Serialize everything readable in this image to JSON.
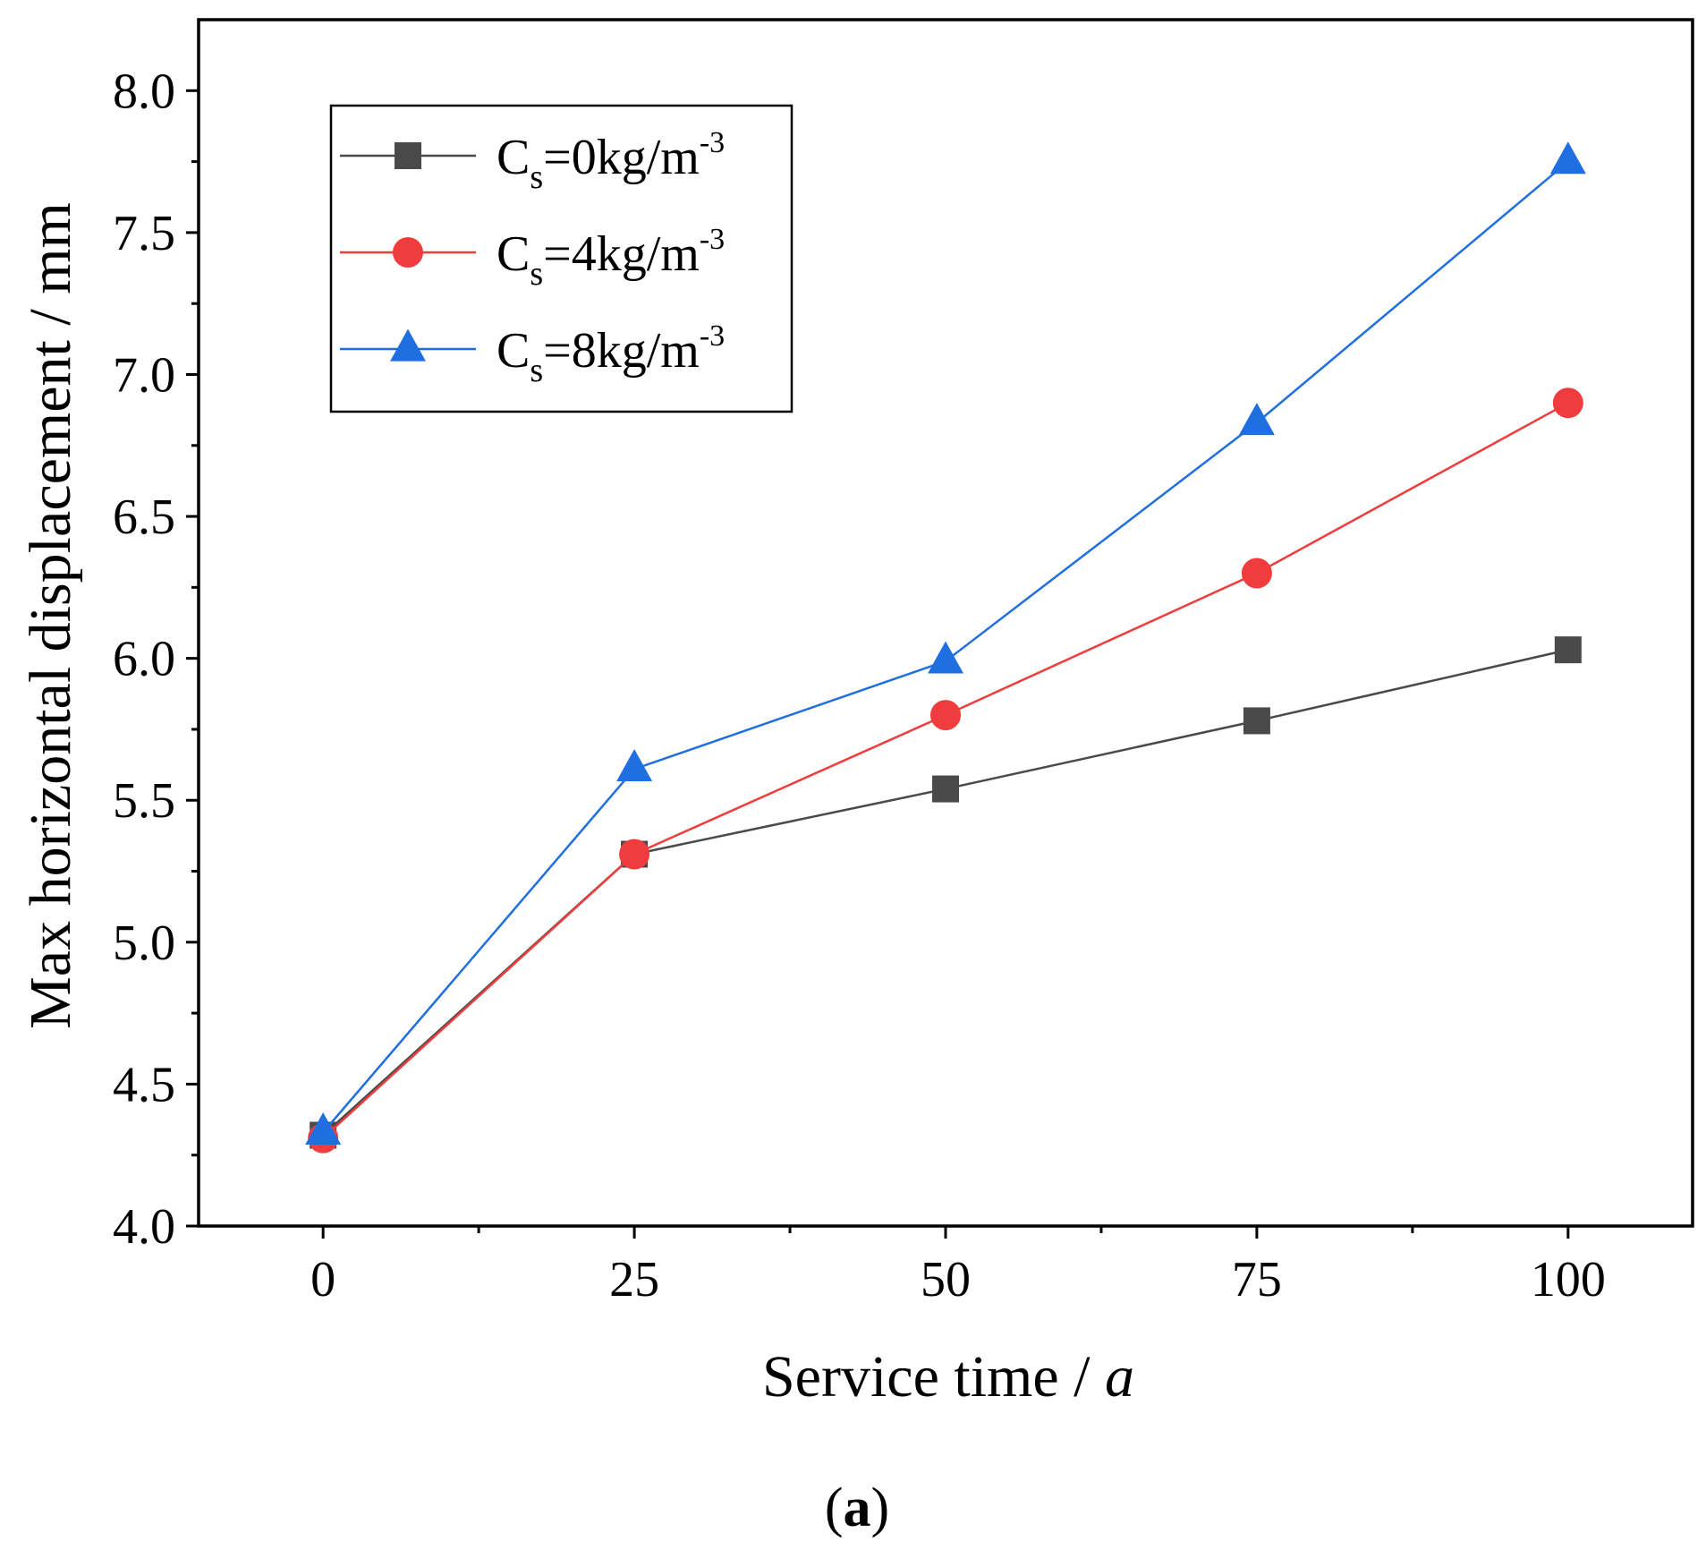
{
  "chart_data": {
    "type": "line",
    "x": [
      0,
      25,
      50,
      75,
      100
    ],
    "xlabel": "Service time / ",
    "xlabel_italic": "a",
    "ylabel": "Max horizontal displacement / mm",
    "xlim": [
      -10,
      110
    ],
    "ylim": [
      4.0,
      8.25
    ],
    "xticks": [
      "0",
      "25",
      "50",
      "75",
      "100"
    ],
    "yticks": [
      "4.0",
      "4.5",
      "5.0",
      "5.5",
      "6.0",
      "6.5",
      "7.0",
      "7.5",
      "8.0"
    ],
    "xtick_values": [
      0,
      25,
      50,
      75,
      100
    ],
    "ytick_values": [
      4.0,
      4.5,
      5.0,
      5.5,
      6.0,
      6.5,
      7.0,
      7.5,
      8.0
    ],
    "legend_position": "top-left",
    "series": [
      {
        "name": "Cs=0kg/m-3",
        "label_main": "C",
        "label_sub": "s",
        "label_rest": "=0kg/m",
        "label_sup": "-3",
        "marker": "square",
        "color": "#4a4a4a",
        "values": [
          4.32,
          5.31,
          5.54,
          5.78,
          6.03
        ]
      },
      {
        "name": "Cs=4kg/m-3",
        "label_main": "C",
        "label_sub": "s",
        "label_rest": "=4kg/m",
        "label_sup": "-3",
        "marker": "circle",
        "color": "#f03c3c",
        "values": [
          4.31,
          5.31,
          5.8,
          6.3,
          6.9
        ]
      },
      {
        "name": "Cs=8kg/m-3",
        "label_main": "C",
        "label_sub": "s",
        "label_rest": "=8kg/m",
        "label_sup": "-3",
        "marker": "triangle",
        "color": "#1f6fe0",
        "values": [
          4.33,
          5.61,
          5.99,
          6.83,
          7.75
        ]
      }
    ]
  },
  "caption": {
    "open": "(",
    "letter": "a",
    "close": ")"
  }
}
